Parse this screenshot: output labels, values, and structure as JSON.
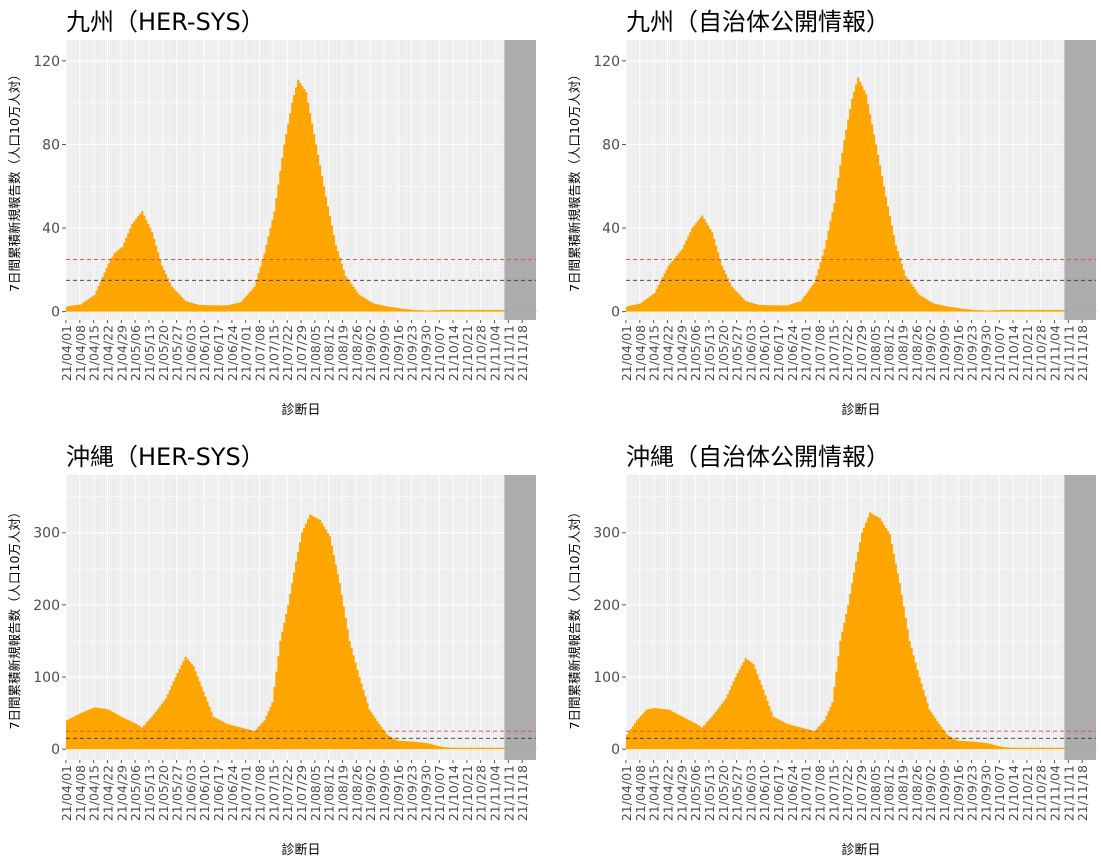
{
  "common": {
    "ylabel": "7日間累積新規報告数（人口10万人対）",
    "xlabel": "診断日",
    "date_ticks": [
      "21/04/01",
      "21/04/08",
      "21/04/15",
      "21/04/22",
      "21/04/29",
      "21/05/06",
      "21/05/13",
      "21/05/20",
      "21/05/27",
      "21/06/03",
      "21/06/10",
      "21/06/17",
      "21/06/24",
      "21/07/01",
      "21/07/08",
      "21/07/15",
      "21/07/22",
      "21/07/29",
      "21/08/05",
      "21/08/12",
      "21/08/19",
      "21/08/26",
      "21/09/02",
      "21/09/09",
      "21/09/16",
      "21/09/23",
      "21/09/30",
      "21/10/07",
      "21/10/14",
      "21/10/21",
      "21/10/28",
      "21/11/04",
      "21/11/11",
      "21/11/18"
    ],
    "colors": {
      "bar": "#FFA500",
      "panel_bg": "#EBEBEB",
      "grid": "#FFFFFF",
      "shade": "#A9A9A9",
      "threshold_red": "#E8433A",
      "threshold_black": "#333333"
    }
  },
  "chart_data": [
    {
      "type": "area",
      "title": "九州（HER-SYS）",
      "xlabel": "診断日",
      "ylabel": "7日間累積新規報告数（人口10万人対）",
      "x_range": [
        "21/04/01",
        "21/11/25"
      ],
      "ylim": [
        -4,
        130
      ],
      "yticks": [
        0,
        40,
        80,
        120
      ],
      "shaded_period": [
        "21/11/09",
        "21/11/25"
      ],
      "hlines": [
        {
          "y": 25,
          "color": "red",
          "style": "dashed"
        },
        {
          "y": 15,
          "color": "black",
          "style": "dashed"
        }
      ],
      "keypoints": [
        [
          0,
          2.5
        ],
        [
          7,
          3.5
        ],
        [
          14,
          8
        ],
        [
          21,
          23
        ],
        [
          24,
          28
        ],
        [
          28,
          31
        ],
        [
          33,
          42
        ],
        [
          38,
          48
        ],
        [
          43,
          38
        ],
        [
          48,
          22
        ],
        [
          53,
          12
        ],
        [
          60,
          5
        ],
        [
          67,
          3.2
        ],
        [
          74,
          3
        ],
        [
          81,
          3
        ],
        [
          88,
          4.5
        ],
        [
          95,
          12
        ],
        [
          100,
          28
        ],
        [
          105,
          48
        ],
        [
          110,
          80
        ],
        [
          114,
          100
        ],
        [
          117,
          111
        ],
        [
          121,
          105
        ],
        [
          126,
          80
        ],
        [
          131,
          55
        ],
        [
          136,
          32
        ],
        [
          141,
          17
        ],
        [
          148,
          8
        ],
        [
          155,
          4
        ],
        [
          162,
          2.5
        ],
        [
          169,
          1.5
        ],
        [
          176,
          0.8
        ],
        [
          183,
          0.5
        ],
        [
          190,
          0.8
        ],
        [
          238,
          0.8
        ]
      ]
    },
    {
      "type": "area",
      "title": "九州（自治体公開情報）",
      "xlabel": "診断日",
      "ylabel": "7日間累積新規報告数（人口10万人対）",
      "x_range": [
        "21/04/01",
        "21/11/25"
      ],
      "ylim": [
        -4,
        130
      ],
      "yticks": [
        0,
        40,
        80,
        120
      ],
      "shaded_period": [
        "21/11/09",
        "21/11/25"
      ],
      "hlines": [
        {
          "y": 25,
          "color": "red",
          "style": "dashed"
        },
        {
          "y": 15,
          "color": "black",
          "style": "dashed"
        }
      ],
      "keypoints": [
        [
          0,
          2.5
        ],
        [
          7,
          4
        ],
        [
          14,
          9
        ],
        [
          21,
          22
        ],
        [
          28,
          30
        ],
        [
          33,
          40
        ],
        [
          38,
          46
        ],
        [
          43,
          38
        ],
        [
          48,
          22
        ],
        [
          53,
          12
        ],
        [
          60,
          5
        ],
        [
          67,
          3.2
        ],
        [
          74,
          3
        ],
        [
          81,
          3
        ],
        [
          88,
          5
        ],
        [
          95,
          14
        ],
        [
          100,
          30
        ],
        [
          105,
          52
        ],
        [
          110,
          82
        ],
        [
          114,
          102
        ],
        [
          117,
          112
        ],
        [
          121,
          104
        ],
        [
          126,
          80
        ],
        [
          131,
          55
        ],
        [
          136,
          32
        ],
        [
          141,
          17
        ],
        [
          148,
          8
        ],
        [
          155,
          4
        ],
        [
          162,
          2.5
        ],
        [
          169,
          1.5
        ],
        [
          176,
          0.8
        ],
        [
          183,
          0.5
        ],
        [
          190,
          0.8
        ],
        [
          238,
          0.8
        ]
      ]
    },
    {
      "type": "area",
      "title": "沖縄（HER-SYS）",
      "xlabel": "診断日",
      "ylabel": "7日間累積新規報告数（人口10万人対）",
      "x_range": [
        "21/04/01",
        "21/11/25"
      ],
      "ylim": [
        -15,
        380
      ],
      "yticks": [
        0,
        100,
        200,
        300
      ],
      "shaded_period": [
        "21/11/09",
        "21/11/25"
      ],
      "hlines": [
        {
          "y": 25,
          "color": "red",
          "style": "dashed"
        },
        {
          "y": 15,
          "color": "black",
          "style": "dashed"
        }
      ],
      "keypoints": [
        [
          0,
          40
        ],
        [
          7,
          50
        ],
        [
          14,
          58
        ],
        [
          21,
          55
        ],
        [
          28,
          44
        ],
        [
          35,
          35
        ],
        [
          38,
          30
        ],
        [
          43,
          45
        ],
        [
          50,
          70
        ],
        [
          55,
          100
        ],
        [
          60,
          128
        ],
        [
          64,
          115
        ],
        [
          69,
          80
        ],
        [
          74,
          45
        ],
        [
          81,
          35
        ],
        [
          88,
          30
        ],
        [
          95,
          25
        ],
        [
          100,
          40
        ],
        [
          104,
          65
        ],
        [
          108,
          150
        ],
        [
          112,
          200
        ],
        [
          116,
          260
        ],
        [
          119,
          300
        ],
        [
          123,
          325
        ],
        [
          128,
          318
        ],
        [
          133,
          295
        ],
        [
          138,
          230
        ],
        [
          143,
          150
        ],
        [
          148,
          100
        ],
        [
          153,
          55
        ],
        [
          158,
          35
        ],
        [
          162,
          20
        ],
        [
          167,
          12
        ],
        [
          172,
          11
        ],
        [
          177,
          10
        ],
        [
          183,
          8
        ],
        [
          190,
          3
        ],
        [
          195,
          2
        ],
        [
          238,
          2
        ]
      ]
    },
    {
      "type": "area",
      "title": "沖縄（自治体公開情報）",
      "xlabel": "診断日",
      "ylabel": "7日間累積新規報告数（人口10万人対）",
      "x_range": [
        "21/04/01",
        "21/11/25"
      ],
      "ylim": [
        -15,
        380
      ],
      "yticks": [
        0,
        100,
        200,
        300
      ],
      "shaded_period": [
        "21/11/09",
        "21/11/25"
      ],
      "hlines": [
        {
          "y": 25,
          "color": "red",
          "style": "dashed"
        },
        {
          "y": 15,
          "color": "black",
          "style": "dashed"
        }
      ],
      "keypoints": [
        [
          0,
          20
        ],
        [
          5,
          40
        ],
        [
          10,
          55
        ],
        [
          14,
          57
        ],
        [
          21,
          55
        ],
        [
          28,
          45
        ],
        [
          35,
          35
        ],
        [
          38,
          30
        ],
        [
          43,
          45
        ],
        [
          50,
          70
        ],
        [
          55,
          100
        ],
        [
          60,
          126
        ],
        [
          64,
          118
        ],
        [
          69,
          82
        ],
        [
          74,
          45
        ],
        [
          81,
          35
        ],
        [
          88,
          30
        ],
        [
          95,
          25
        ],
        [
          100,
          40
        ],
        [
          104,
          65
        ],
        [
          108,
          150
        ],
        [
          112,
          200
        ],
        [
          116,
          260
        ],
        [
          119,
          300
        ],
        [
          123,
          328
        ],
        [
          128,
          320
        ],
        [
          133,
          298
        ],
        [
          138,
          230
        ],
        [
          143,
          150
        ],
        [
          148,
          100
        ],
        [
          153,
          55
        ],
        [
          158,
          35
        ],
        [
          162,
          20
        ],
        [
          167,
          12
        ],
        [
          172,
          11
        ],
        [
          177,
          10
        ],
        [
          183,
          8
        ],
        [
          190,
          3
        ],
        [
          195,
          2
        ],
        [
          238,
          2
        ]
      ]
    }
  ]
}
